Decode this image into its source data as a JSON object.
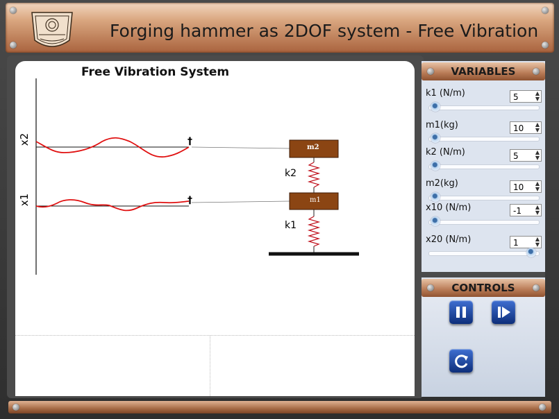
{
  "header": {
    "title": "Forging hammer as 2DOF system - Free Vibration",
    "logo": "institute-logo"
  },
  "canvas": {
    "title": "Free Vibration System",
    "axis_labels": {
      "x2": "x2",
      "x1": "x1"
    },
    "mass_labels": {
      "m2": "m2",
      "m1": "m1"
    },
    "spring_labels": {
      "k2": "k2",
      "k1": "k1"
    },
    "pointer_symbols": {
      "top": "†",
      "bottom": "†"
    }
  },
  "variables": {
    "title": "VARIABLES",
    "items": [
      {
        "label": "k1 (N/m)",
        "value": "5",
        "slider_fraction": 0.0
      },
      {
        "label": "m1(kg)",
        "value": "10",
        "slider_fraction": 0.0
      },
      {
        "label": "k2 (N/m)",
        "value": "5",
        "slider_fraction": 0.0
      },
      {
        "label": "m2(kg)",
        "value": "10",
        "slider_fraction": 0.0
      },
      {
        "label": "x10 (N/m)",
        "value": "-1",
        "slider_fraction": 0.0
      },
      {
        "label": "x20 (N/m)",
        "value": "1",
        "slider_fraction": 1.0
      }
    ]
  },
  "controls": {
    "title": "CONTROLS",
    "buttons": [
      "pause-icon",
      "step-forward-icon",
      "reset-icon"
    ]
  },
  "colors": {
    "accent": "#0d2e7a",
    "wave": "#e01010",
    "mass": "#8b4513"
  }
}
